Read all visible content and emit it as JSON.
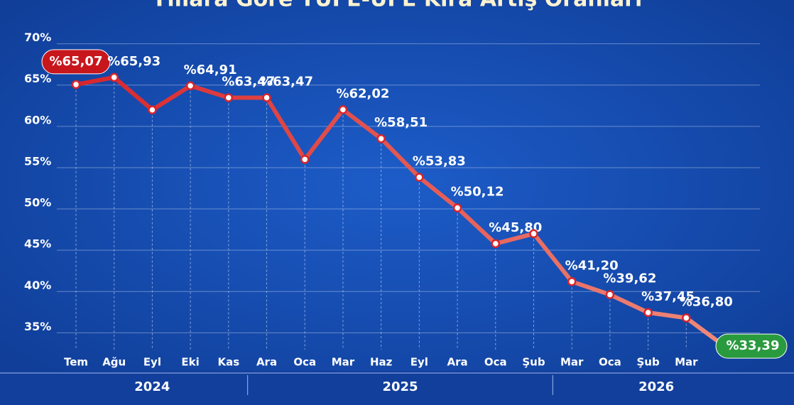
{
  "chart_data": {
    "type": "line",
    "title": "Yıllara Göre TÜFE-ÜFE Kira Artış Oranları",
    "categories": [
      "Tem",
      "Ağu",
      "Eyl",
      "Eki",
      "Kas",
      "Ara",
      "Oca",
      "Mar",
      "Haz",
      "Eyl",
      "Ara",
      "Oca",
      "Şub",
      "Mar",
      "Oca",
      "Şub",
      "Mar",
      null
    ],
    "series": [
      {
        "color": "#d8252b",
        "values": [
          65.07,
          65.93,
          62,
          64.91,
          63.47,
          63.47,
          56,
          62.02,
          58.51,
          53.83,
          50.12,
          45.8,
          47,
          41.2,
          39.62,
          37.45,
          36.8,
          33.39
        ],
        "value_labels": [
          "%65,07",
          "%65,93",
          null,
          "%64,91",
          "%63,47",
          "%63,47",
          null,
          "%62,02",
          "%58,51",
          "%53,83",
          "%50,12",
          "%45,80",
          null,
          "%41,20",
          "%39,62",
          "%37,45",
          "%36,80",
          "%33,39"
        ]
      }
    ],
    "years": [
      "2024",
      "2025",
      "2026"
    ],
    "ylim": [
      34,
      71
    ],
    "yticks": [
      {
        "value": 35,
        "label": "35%"
      },
      {
        "value": 40,
        "label": "40%"
      },
      {
        "value": 45,
        "label": "45%"
      },
      {
        "value": 50,
        "label": "50%"
      },
      {
        "value": 55,
        "label": "55%"
      },
      {
        "value": 60,
        "label": "60%"
      },
      {
        "value": 65,
        "label": "65%"
      },
      {
        "value": 70,
        "label": "70%"
      }
    ],
    "grid": true
  }
}
